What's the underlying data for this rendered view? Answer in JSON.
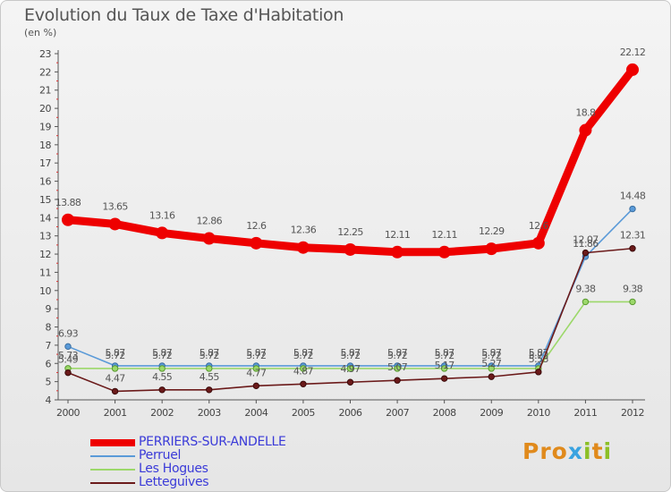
{
  "header": {
    "title": "Evolution du Taux de Taxe d'Habitation",
    "subtitle": "(en %)"
  },
  "logo": {
    "text": "Proxiti",
    "letter_colors": [
      "#e08a1c",
      "#e08a1c",
      "#e08a1c",
      "#3aa3e0",
      "#8cbf26",
      "#e08a1c",
      "#8cbf26"
    ]
  },
  "chart_data": {
    "type": "line",
    "title": "Evolution du Taux de Taxe d'Habitation",
    "subtitle": "(en %)",
    "x": [
      "2000",
      "2001",
      "2002",
      "2003",
      "2004",
      "2005",
      "2006",
      "2007",
      "2008",
      "2009",
      "2010",
      "2011",
      "2012"
    ],
    "ylim": [
      4,
      23
    ],
    "yticks": [
      4,
      5,
      6,
      7,
      8,
      9,
      10,
      11,
      12,
      13,
      14,
      15,
      16,
      17,
      18,
      19,
      20,
      21,
      22,
      23
    ],
    "grid": false,
    "legend_position": "bottom-left",
    "series": [
      {
        "name": "PERRIERS-SUR-ANDELLE",
        "color": "#ee0000",
        "values": [
          13.88,
          13.65,
          13.16,
          12.86,
          12.6,
          12.36,
          12.25,
          12.11,
          12.11,
          12.29,
          12.6,
          18.8,
          22.12
        ],
        "labels": [
          "13.88",
          "13.65",
          "13.16",
          "12.86",
          "12.6",
          "12.36",
          "12.25",
          "12.11",
          "12.11",
          "12.29",
          "12.6",
          "18.8",
          "22.12"
        ]
      },
      {
        "name": "Perruel",
        "color": "#5a9ad8",
        "values": [
          6.93,
          5.87,
          5.87,
          5.87,
          5.87,
          5.87,
          5.87,
          5.87,
          5.87,
          5.87,
          5.87,
          11.86,
          14.48
        ],
        "labels": [
          "6.93",
          "5.87",
          "5.87",
          "5.87",
          "5.87",
          "5.87",
          "5.87",
          "5.87",
          "5.87",
          "5.87",
          "5.87",
          "11.86",
          "14.48"
        ]
      },
      {
        "name": "Les Hogues",
        "color": "#9cd86a",
        "values": [
          5.73,
          5.72,
          5.72,
          5.72,
          5.72,
          5.72,
          5.72,
          5.72,
          5.72,
          5.72,
          5.72,
          9.38,
          9.38
        ],
        "labels": [
          "5.73",
          "5.72",
          "5.72",
          "5.72",
          "5.72",
          "5.72",
          "5.72",
          "5.72",
          "5.72",
          "5.72",
          "5.72",
          "9.38",
          "9.38"
        ]
      },
      {
        "name": "Letteguives",
        "color": "#6b1a1a",
        "values": [
          5.49,
          4.47,
          4.55,
          4.55,
          4.77,
          4.87,
          4.97,
          5.07,
          5.17,
          5.27,
          5.53,
          12.07,
          12.31
        ],
        "labels": [
          "5.49",
          "4.47",
          "4.55",
          "4.55",
          "4.77",
          "4.87",
          "4.97",
          "5.07",
          "5.17",
          "5.27",
          "5.53",
          "12.07",
          "12.31"
        ]
      }
    ]
  }
}
